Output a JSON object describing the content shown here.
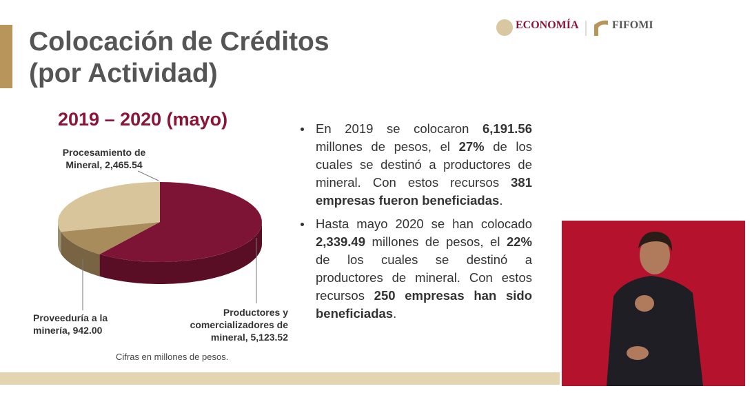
{
  "slide": {
    "title": "Colocación de Créditos",
    "title2": "(por Actividad)",
    "logo_left": "ECONOMÍA",
    "logo_right": "FIFOMI",
    "bullets": [
      [
        {
          "text": "En 2019 se colocaron ",
          "bold": false
        },
        {
          "text": "6,191.56",
          "bold": true
        },
        {
          "text": " millones de pesos, el ",
          "bold": false
        },
        {
          "text": "27%",
          "bold": true
        },
        {
          "text": " de los cuales se destinó a productores de mineral. Con estos recursos ",
          "bold": false
        },
        {
          "text": "381 empresas fueron beneficiadas",
          "bold": true
        },
        {
          "text": ".",
          "bold": false
        }
      ],
      [
        {
          "text": "Hasta mayo 2020 se han colocado ",
          "bold": false
        },
        {
          "text": "2,339.49",
          "bold": true
        },
        {
          "text": " millones de pesos, el ",
          "bold": false
        },
        {
          "text": "22%",
          "bold": true
        },
        {
          "text": " de los cuales se destinó a productores de mineral. Con estos recursos ",
          "bold": false
        },
        {
          "text": "250 empresas han sido beneficiadas",
          "bold": true
        },
        {
          "text": ".",
          "bold": false
        }
      ]
    ]
  },
  "chart_data": {
    "type": "pie",
    "title": "2019 – 2020 (mayo)",
    "note": "Cifras en millones de pesos.",
    "categories": [
      "Productores y comercializadores de mineral,",
      "Proveeduría a la minería,",
      "Procesamiento de Mineral,"
    ],
    "values": [
      5123.52,
      942.0,
      2465.54
    ],
    "value_labels": [
      "5,123.52",
      "942.00",
      "2,465.54"
    ],
    "colors": [
      "#7d1436",
      "#a88c5c",
      "#d8c59c"
    ]
  }
}
